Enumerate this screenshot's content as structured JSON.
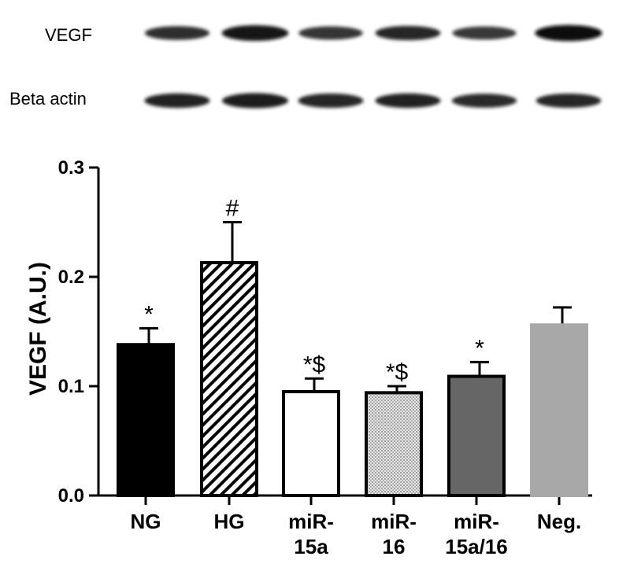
{
  "blot": {
    "rows": [
      {
        "label": "VEGF",
        "intensities": [
          0.62,
          0.88,
          0.55,
          0.7,
          0.52,
          0.95
        ]
      },
      {
        "label": "Beta actin",
        "intensities": [
          0.72,
          0.8,
          0.7,
          0.72,
          0.64,
          0.68
        ]
      }
    ]
  },
  "chart_data": {
    "type": "bar",
    "categories": [
      "NG",
      "HG",
      "miR-15a",
      "miR-16",
      "miR-15a/16",
      "Neg."
    ],
    "category_lines": [
      [
        "NG"
      ],
      [
        "HG"
      ],
      [
        "miR-",
        "15a"
      ],
      [
        "miR-",
        "16"
      ],
      [
        "miR-",
        "15a/16"
      ],
      [
        "Neg."
      ]
    ],
    "values": [
      0.138,
      0.213,
      0.095,
      0.094,
      0.109,
      0.156
    ],
    "errors": [
      0.015,
      0.037,
      0.012,
      0.006,
      0.013,
      0.016
    ],
    "annotations": [
      "*",
      "#",
      "*$",
      "*$",
      "*",
      ""
    ],
    "fills": [
      "solid-black",
      "hatched",
      "white",
      "dotted",
      "dark-gray",
      "light-gray"
    ],
    "fill_colors": {
      "solid-black": "#000000",
      "dark-gray": "#666666",
      "light-gray": "#a8a8a8",
      "white": "#ffffff"
    },
    "title": "",
    "xlabel": "",
    "ylabel": "VEGF (A.U.)",
    "ylim": [
      0,
      0.3
    ],
    "yticks": [
      "0.0",
      "0.1",
      "0.2",
      "0.3"
    ],
    "grid": false
  }
}
